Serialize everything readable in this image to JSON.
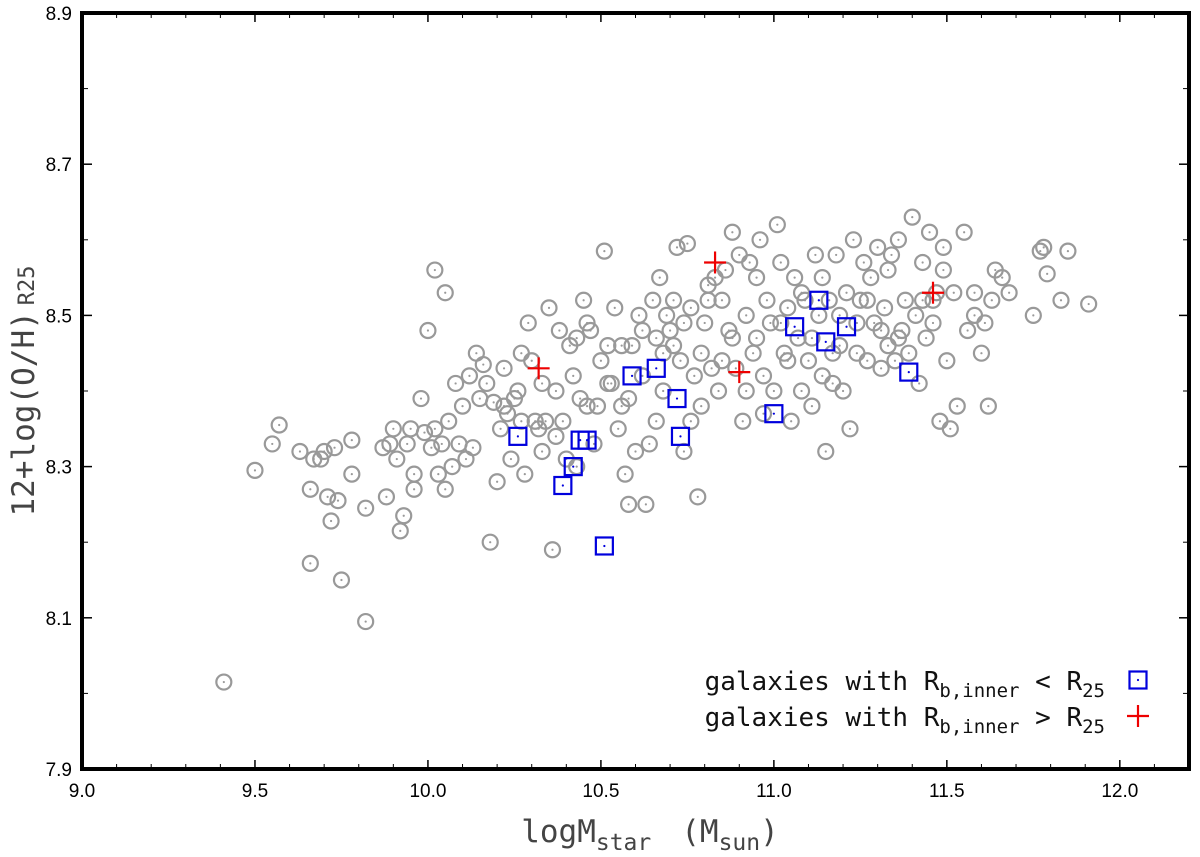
{
  "chart_data": {
    "type": "scatter",
    "title": "",
    "xlabel": {
      "main": "logM",
      "sub": "star",
      "unit_open": "(M",
      "unit_sub": "sun",
      "unit_close": ")"
    },
    "ylabel": {
      "main": "12+log(O/H)",
      "sub": "R25"
    },
    "xlim": [
      9.0,
      12.2
    ],
    "ylim": [
      7.9,
      8.9
    ],
    "xticks": [
      9.0,
      9.5,
      10.0,
      10.5,
      11.0,
      11.5,
      12.0
    ],
    "xtick_labels": [
      "9.0",
      "9.5",
      "10.0",
      "10.5",
      "11.0",
      "11.5",
      "12.0"
    ],
    "yticks": [
      7.9,
      8.1,
      8.3,
      8.5,
      8.7,
      8.9
    ],
    "ytick_labels": [
      "7.9",
      "8.1",
      "8.3",
      "8.5",
      "8.7",
      "8.9"
    ],
    "grid": false,
    "legend_position": "bottom-right",
    "colors": {
      "background": "#999999",
      "inner_lt": "#0000dd",
      "inner_gt": "#ee0000"
    },
    "legend": [
      {
        "prefix": "galaxies with R",
        "sub": "b,inner",
        "op": " < R",
        "sub2": "25",
        "marker": "square"
      },
      {
        "prefix": "galaxies with R",
        "sub": "b,inner",
        "op": " > R",
        "sub2": "25",
        "marker": "plus"
      }
    ],
    "series": [
      {
        "marker": "open-circle",
        "points": [
          [
            9.41,
            8.015
          ],
          [
            9.5,
            8.295
          ],
          [
            9.55,
            8.33
          ],
          [
            9.57,
            8.355
          ],
          [
            9.63,
            8.32
          ],
          [
            9.66,
            8.27
          ],
          [
            9.66,
            8.172
          ],
          [
            9.67,
            8.31
          ],
          [
            9.69,
            8.31
          ],
          [
            9.7,
            8.32
          ],
          [
            9.71,
            8.26
          ],
          [
            9.72,
            8.228
          ],
          [
            9.73,
            8.325
          ],
          [
            9.74,
            8.255
          ],
          [
            9.75,
            8.15
          ],
          [
            9.78,
            8.335
          ],
          [
            9.78,
            8.29
          ],
          [
            9.82,
            8.245
          ],
          [
            9.82,
            8.095
          ],
          [
            9.87,
            8.325
          ],
          [
            9.88,
            8.26
          ],
          [
            9.89,
            8.33
          ],
          [
            9.9,
            8.35
          ],
          [
            9.91,
            8.31
          ],
          [
            9.92,
            8.215
          ],
          [
            9.93,
            8.235
          ],
          [
            9.94,
            8.33
          ],
          [
            9.95,
            8.35
          ],
          [
            9.96,
            8.27
          ],
          [
            9.96,
            8.29
          ],
          [
            9.98,
            8.39
          ],
          [
            9.99,
            8.345
          ],
          [
            10.0,
            8.48
          ],
          [
            10.01,
            8.325
          ],
          [
            10.02,
            8.56
          ],
          [
            10.03,
            8.29
          ],
          [
            10.04,
            8.33
          ],
          [
            10.05,
            8.53
          ],
          [
            10.06,
            8.36
          ],
          [
            10.07,
            8.3
          ],
          [
            10.08,
            8.41
          ],
          [
            10.09,
            8.33
          ],
          [
            10.1,
            8.38
          ],
          [
            10.12,
            8.42
          ],
          [
            10.13,
            8.325
          ],
          [
            10.15,
            8.39
          ],
          [
            10.16,
            8.435
          ],
          [
            10.17,
            8.41
          ],
          [
            10.18,
            8.2
          ],
          [
            10.19,
            8.385
          ],
          [
            10.2,
            8.28
          ],
          [
            10.21,
            8.35
          ],
          [
            10.22,
            8.38
          ],
          [
            10.23,
            8.37
          ],
          [
            10.24,
            8.31
          ],
          [
            10.25,
            8.39
          ],
          [
            10.26,
            8.4
          ],
          [
            10.27,
            8.36
          ],
          [
            10.28,
            8.29
          ],
          [
            10.29,
            8.49
          ],
          [
            10.3,
            8.44
          ],
          [
            10.31,
            8.36
          ],
          [
            10.32,
            8.35
          ],
          [
            10.33,
            8.32
          ],
          [
            10.34,
            8.36
          ],
          [
            10.35,
            8.51
          ],
          [
            10.36,
            8.19
          ],
          [
            10.37,
            8.4
          ],
          [
            10.38,
            8.48
          ],
          [
            10.39,
            8.36
          ],
          [
            10.4,
            8.31
          ],
          [
            10.41,
            8.46
          ],
          [
            10.42,
            8.42
          ],
          [
            10.43,
            8.3
          ],
          [
            10.44,
            8.39
          ],
          [
            10.45,
            8.52
          ],
          [
            10.46,
            8.38
          ],
          [
            10.47,
            8.48
          ],
          [
            10.48,
            8.33
          ],
          [
            10.49,
            8.38
          ],
          [
            10.5,
            8.44
          ],
          [
            10.51,
            8.585
          ],
          [
            10.52,
            8.46
          ],
          [
            10.53,
            8.41
          ],
          [
            10.54,
            8.51
          ],
          [
            10.55,
            8.35
          ],
          [
            10.56,
            8.38
          ],
          [
            10.57,
            8.29
          ],
          [
            10.58,
            8.25
          ],
          [
            10.59,
            8.46
          ],
          [
            10.6,
            8.32
          ],
          [
            10.61,
            8.5
          ],
          [
            10.62,
            8.42
          ],
          [
            10.63,
            8.25
          ],
          [
            10.64,
            8.33
          ],
          [
            10.65,
            8.52
          ],
          [
            10.66,
            8.47
          ],
          [
            10.67,
            8.55
          ],
          [
            10.68,
            8.4
          ],
          [
            10.69,
            8.5
          ],
          [
            10.7,
            8.48
          ],
          [
            10.71,
            8.52
          ],
          [
            10.72,
            8.59
          ],
          [
            10.73,
            8.44
          ],
          [
            10.74,
            8.32
          ],
          [
            10.75,
            8.595
          ],
          [
            10.76,
            8.51
          ],
          [
            10.77,
            8.42
          ],
          [
            10.78,
            8.26
          ],
          [
            10.79,
            8.38
          ],
          [
            10.8,
            8.49
          ],
          [
            10.81,
            8.54
          ],
          [
            10.82,
            8.43
          ],
          [
            10.83,
            8.55
          ],
          [
            10.84,
            8.4
          ],
          [
            10.85,
            8.52
          ],
          [
            10.86,
            8.56
          ],
          [
            10.87,
            8.48
          ],
          [
            10.88,
            8.61
          ],
          [
            10.89,
            8.43
          ],
          [
            10.9,
            8.58
          ],
          [
            10.91,
            8.36
          ],
          [
            10.92,
            8.5
          ],
          [
            10.93,
            8.57
          ],
          [
            10.94,
            8.45
          ],
          [
            10.95,
            8.55
          ],
          [
            10.96,
            8.6
          ],
          [
            10.97,
            8.42
          ],
          [
            10.98,
            8.52
          ],
          [
            10.99,
            8.49
          ],
          [
            11.0,
            8.4
          ],
          [
            11.01,
            8.62
          ],
          [
            11.02,
            8.57
          ],
          [
            11.03,
            8.45
          ],
          [
            11.04,
            8.51
          ],
          [
            11.05,
            8.36
          ],
          [
            11.06,
            8.55
          ],
          [
            11.07,
            8.47
          ],
          [
            11.08,
            8.4
          ],
          [
            11.09,
            8.52
          ],
          [
            11.1,
            8.44
          ],
          [
            11.11,
            8.38
          ],
          [
            11.12,
            8.58
          ],
          [
            11.13,
            8.5
          ],
          [
            11.14,
            8.42
          ],
          [
            11.15,
            8.32
          ],
          [
            11.16,
            8.52
          ],
          [
            11.17,
            8.45
          ],
          [
            11.18,
            8.58
          ],
          [
            11.19,
            8.5
          ],
          [
            11.2,
            8.4
          ],
          [
            11.21,
            8.53
          ],
          [
            11.22,
            8.35
          ],
          [
            11.23,
            8.6
          ],
          [
            11.24,
            8.45
          ],
          [
            11.25,
            8.52
          ],
          [
            11.26,
            8.57
          ],
          [
            11.27,
            8.44
          ],
          [
            11.28,
            8.55
          ],
          [
            11.29,
            8.49
          ],
          [
            11.3,
            8.59
          ],
          [
            11.31,
            8.43
          ],
          [
            11.32,
            8.51
          ],
          [
            11.33,
            8.46
          ],
          [
            11.34,
            8.58
          ],
          [
            11.35,
            8.44
          ],
          [
            11.36,
            8.6
          ],
          [
            11.37,
            8.48
          ],
          [
            11.38,
            8.52
          ],
          [
            11.39,
            8.45
          ],
          [
            11.4,
            8.63
          ],
          [
            11.41,
            8.5
          ],
          [
            11.42,
            8.41
          ],
          [
            11.43,
            8.57
          ],
          [
            11.44,
            8.47
          ],
          [
            11.45,
            8.61
          ],
          [
            11.46,
            8.52
          ],
          [
            11.47,
            8.53
          ],
          [
            11.48,
            8.36
          ],
          [
            11.49,
            8.59
          ],
          [
            11.5,
            8.44
          ],
          [
            11.51,
            8.35
          ],
          [
            11.52,
            8.53
          ],
          [
            11.53,
            8.38
          ],
          [
            11.55,
            8.61
          ],
          [
            11.56,
            8.48
          ],
          [
            11.58,
            8.5
          ],
          [
            11.6,
            8.45
          ],
          [
            11.61,
            8.49
          ],
          [
            11.62,
            8.38
          ],
          [
            11.63,
            8.52
          ],
          [
            11.64,
            8.56
          ],
          [
            11.66,
            8.55
          ],
          [
            11.68,
            8.53
          ],
          [
            11.75,
            8.5
          ],
          [
            11.77,
            8.585
          ],
          [
            11.78,
            8.59
          ],
          [
            11.79,
            8.555
          ],
          [
            11.83,
            8.52
          ],
          [
            11.85,
            8.585
          ],
          [
            11.91,
            8.515
          ],
          [
            10.02,
            8.35
          ],
          [
            10.05,
            8.27
          ],
          [
            10.11,
            8.31
          ],
          [
            10.14,
            8.45
          ],
          [
            10.22,
            8.43
          ],
          [
            10.27,
            8.45
          ],
          [
            10.33,
            8.41
          ],
          [
            10.37,
            8.34
          ],
          [
            10.43,
            8.47
          ],
          [
            10.46,
            8.49
          ],
          [
            10.52,
            8.41
          ],
          [
            10.56,
            8.46
          ],
          [
            10.58,
            8.39
          ],
          [
            10.62,
            8.48
          ],
          [
            10.66,
            8.36
          ],
          [
            10.68,
            8.45
          ],
          [
            10.71,
            8.46
          ],
          [
            10.74,
            8.49
          ],
          [
            10.76,
            8.36
          ],
          [
            10.79,
            8.45
          ],
          [
            10.81,
            8.52
          ],
          [
            10.85,
            8.44
          ],
          [
            10.88,
            8.47
          ],
          [
            10.92,
            8.4
          ],
          [
            10.95,
            8.47
          ],
          [
            10.97,
            8.37
          ],
          [
            11.02,
            8.49
          ],
          [
            11.04,
            8.44
          ],
          [
            11.08,
            8.53
          ],
          [
            11.11,
            8.47
          ],
          [
            11.14,
            8.55
          ],
          [
            11.17,
            8.41
          ],
          [
            11.19,
            8.46
          ],
          [
            11.24,
            8.49
          ],
          [
            11.27,
            8.52
          ],
          [
            11.31,
            8.48
          ],
          [
            11.33,
            8.56
          ],
          [
            11.36,
            8.47
          ],
          [
            11.43,
            8.52
          ],
          [
            11.46,
            8.49
          ],
          [
            11.49,
            8.56
          ],
          [
            11.58,
            8.53
          ]
        ]
      },
      {
        "name": "galaxies with Rb,inner < R25",
        "marker": "open-square",
        "points": [
          [
            10.26,
            8.34
          ],
          [
            10.39,
            8.275
          ],
          [
            10.42,
            8.3
          ],
          [
            10.44,
            8.335
          ],
          [
            10.46,
            8.335
          ],
          [
            10.51,
            8.195
          ],
          [
            10.59,
            8.42
          ],
          [
            10.66,
            8.43
          ],
          [
            10.72,
            8.39
          ],
          [
            10.73,
            8.34
          ],
          [
            11.0,
            8.37
          ],
          [
            11.06,
            8.485
          ],
          [
            11.13,
            8.52
          ],
          [
            11.15,
            8.465
          ],
          [
            11.21,
            8.485
          ],
          [
            11.39,
            8.425
          ]
        ]
      },
      {
        "name": "galaxies with Rb,inner > R25",
        "marker": "plus",
        "points": [
          [
            10.32,
            8.43
          ],
          [
            10.83,
            8.57
          ],
          [
            10.9,
            8.425
          ],
          [
            11.46,
            8.53
          ]
        ]
      }
    ]
  }
}
